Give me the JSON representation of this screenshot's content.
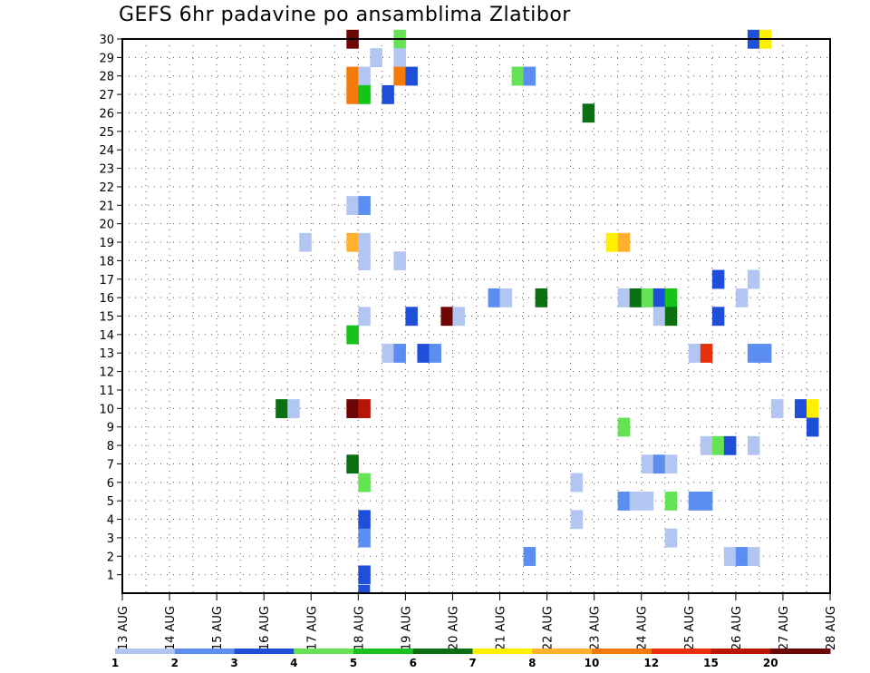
{
  "chart_data": {
    "type": "heatmap",
    "title": "GEFS 6hr padavine po ansamblima Zlatibor",
    "xlabel": "",
    "ylabel": "",
    "x_ticks": [
      "13 AUG",
      "14 AUG",
      "15 AUG",
      "16 AUG",
      "17 AUG",
      "18 AUG",
      "19 AUG",
      "20 AUG",
      "21 AUG",
      "22 AUG",
      "23 AUG",
      "24 AUG",
      "25 AUG",
      "26 AUG",
      "27 AUG",
      "28 AUG"
    ],
    "x_range_days": [
      13,
      28
    ],
    "x_step_hours": 6,
    "y_ticks": [
      1,
      2,
      3,
      4,
      5,
      6,
      7,
      8,
      9,
      10,
      11,
      12,
      13,
      14,
      15,
      16,
      17,
      18,
      19,
      20,
      21,
      22,
      23,
      24,
      25,
      26,
      27,
      28,
      29,
      30
    ],
    "y_range": [
      0,
      30
    ],
    "grid": true,
    "colorbar": {
      "labels": [
        "1",
        "2",
        "3",
        "4",
        "5",
        "6",
        "7",
        "8",
        "10",
        "12",
        "15",
        "20"
      ],
      "colors": [
        "#b3c6f2",
        "#5b8ef0",
        "#1f4fd8",
        "#66e355",
        "#17c21a",
        "#0b7012",
        "#fff000",
        "#ffb12e",
        "#f47a0a",
        "#e83008",
        "#b81605",
        "#6e0505"
      ]
    },
    "cells_note": "each cell: [member, time in days of August (start of 6h step), color class index 1-12]",
    "cells": [
      [
        30,
        17.75,
        12
      ],
      [
        30,
        18.75,
        4
      ],
      [
        30,
        26.25,
        3
      ],
      [
        30,
        26.5,
        7
      ],
      [
        29,
        18.25,
        1
      ],
      [
        29,
        18.75,
        1
      ],
      [
        28,
        17.75,
        9
      ],
      [
        28,
        18.0,
        1
      ],
      [
        28,
        18.75,
        9
      ],
      [
        28,
        19.0,
        3
      ],
      [
        28,
        21.25,
        4
      ],
      [
        28,
        21.5,
        2
      ],
      [
        27,
        17.75,
        9
      ],
      [
        27,
        18.0,
        5
      ],
      [
        27,
        18.5,
        3
      ],
      [
        26,
        22.75,
        6
      ],
      [
        21,
        17.75,
        1
      ],
      [
        21,
        18.0,
        2
      ],
      [
        19,
        16.75,
        1
      ],
      [
        19,
        17.75,
        8
      ],
      [
        19,
        18.0,
        1
      ],
      [
        19,
        23.25,
        7
      ],
      [
        19,
        23.5,
        8
      ],
      [
        18,
        18.0,
        1
      ],
      [
        18,
        18.75,
        1
      ],
      [
        17,
        25.5,
        3
      ],
      [
        17,
        26.25,
        1
      ],
      [
        16,
        20.75,
        2
      ],
      [
        16,
        21.0,
        1
      ],
      [
        16,
        21.75,
        6
      ],
      [
        16,
        23.5,
        1
      ],
      [
        16,
        23.75,
        6
      ],
      [
        16,
        24.0,
        4
      ],
      [
        16,
        24.25,
        3
      ],
      [
        16,
        24.5,
        5
      ],
      [
        16,
        26.0,
        1
      ],
      [
        15,
        18.0,
        1
      ],
      [
        15,
        19.0,
        3
      ],
      [
        15,
        19.75,
        12
      ],
      [
        15,
        20.0,
        1
      ],
      [
        15,
        24.25,
        1
      ],
      [
        15,
        24.5,
        6
      ],
      [
        15,
        25.5,
        3
      ],
      [
        14,
        17.75,
        5
      ],
      [
        13,
        18.5,
        1
      ],
      [
        13,
        18.75,
        2
      ],
      [
        13,
        19.25,
        3
      ],
      [
        13,
        19.5,
        2
      ],
      [
        13,
        25.0,
        1
      ],
      [
        13,
        25.25,
        10
      ],
      [
        13,
        26.25,
        2
      ],
      [
        13,
        26.5,
        2
      ],
      [
        10,
        16.25,
        6
      ],
      [
        10,
        16.5,
        1
      ],
      [
        10,
        17.75,
        12
      ],
      [
        10,
        18.0,
        11
      ],
      [
        10,
        26.75,
        1
      ],
      [
        10,
        27.25,
        3
      ],
      [
        10,
        27.5,
        7
      ],
      [
        9,
        23.5,
        4
      ],
      [
        9,
        27.5,
        3
      ],
      [
        8,
        25.25,
        1
      ],
      [
        8,
        25.5,
        4
      ],
      [
        8,
        25.75,
        3
      ],
      [
        8,
        26.25,
        1
      ],
      [
        7,
        17.75,
        6
      ],
      [
        7,
        24.0,
        1
      ],
      [
        7,
        24.25,
        2
      ],
      [
        7,
        24.5,
        1
      ],
      [
        6,
        18.0,
        4
      ],
      [
        6,
        22.5,
        1
      ],
      [
        5,
        23.5,
        2
      ],
      [
        5,
        23.75,
        1
      ],
      [
        5,
        24.0,
        1
      ],
      [
        5,
        24.5,
        4
      ],
      [
        5,
        25.0,
        2
      ],
      [
        5,
        25.25,
        2
      ],
      [
        4,
        18.0,
        3
      ],
      [
        4,
        22.5,
        1
      ],
      [
        3,
        18.0,
        2
      ],
      [
        3,
        24.5,
        1
      ],
      [
        2,
        21.5,
        2
      ],
      [
        2,
        25.75,
        1
      ],
      [
        2,
        26.0,
        2
      ],
      [
        2,
        26.25,
        1
      ],
      [
        1,
        18.0,
        3
      ]
    ]
  }
}
